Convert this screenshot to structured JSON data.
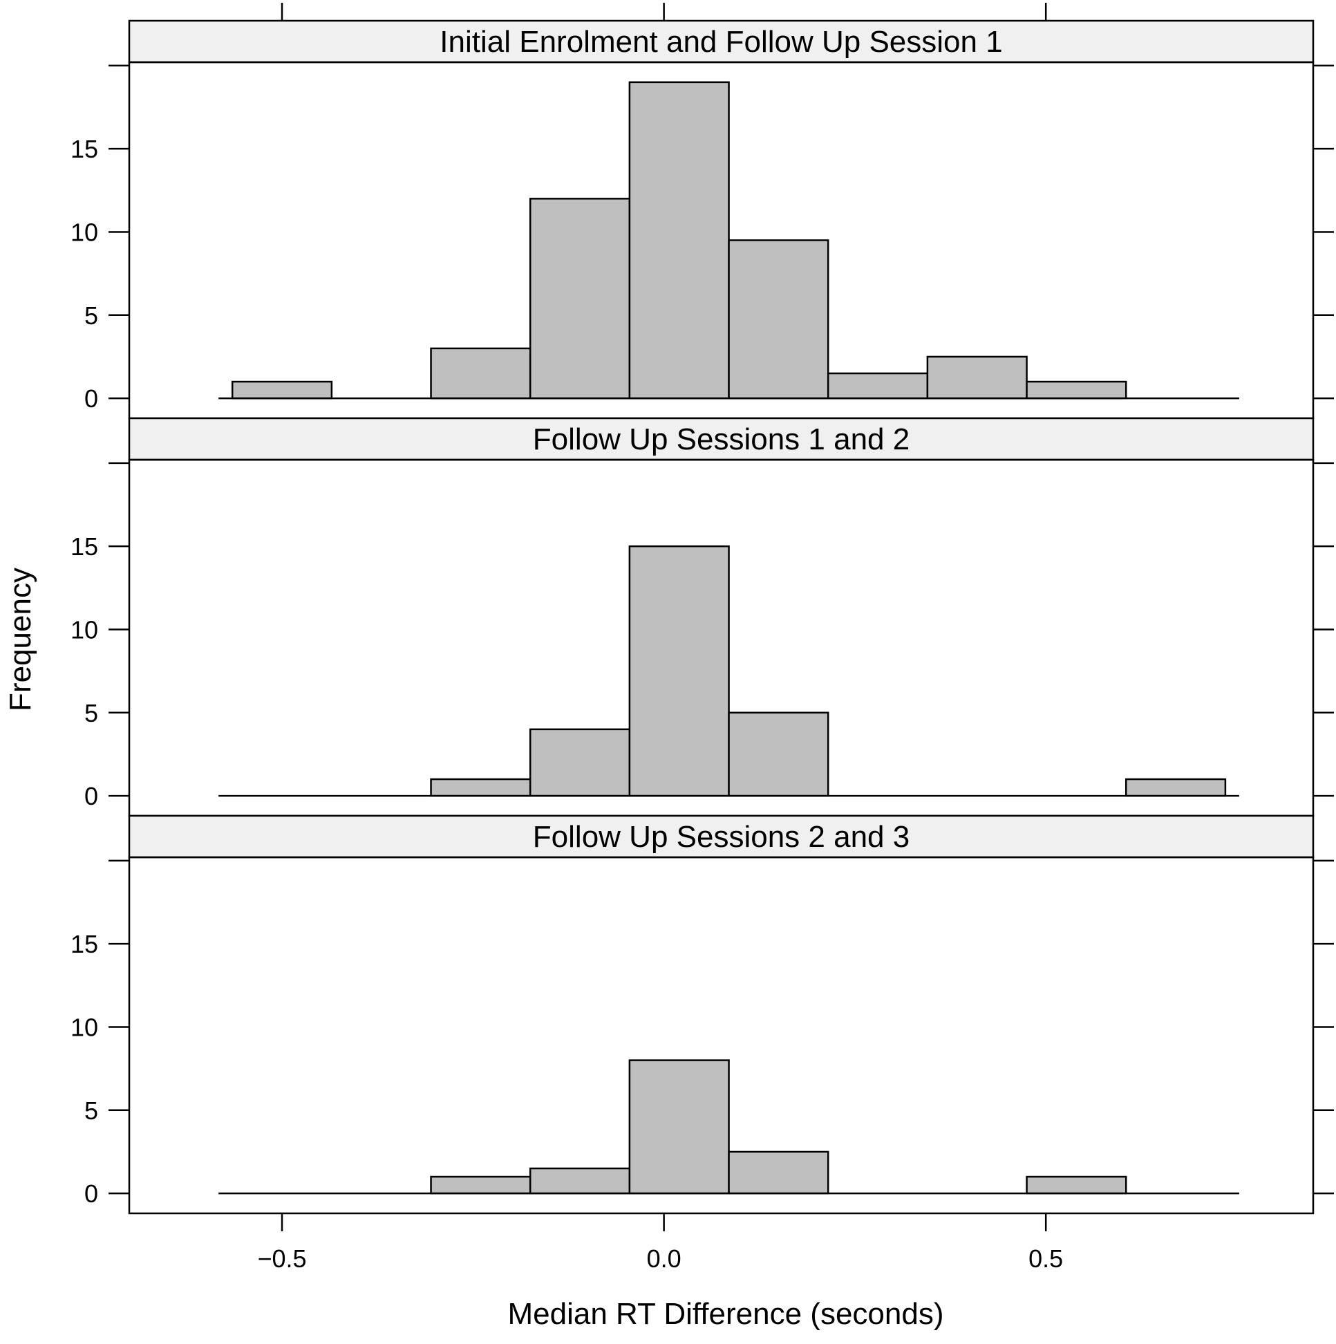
{
  "chart_data": {
    "type": "bar",
    "subtype": "histogram",
    "xlabel": "Median RT Difference (seconds)",
    "ylabel": "Frequency",
    "xlim": [
      -0.7,
      0.85
    ],
    "ylim": [
      -1.2,
      20.2
    ],
    "x_ticks": [
      -0.5,
      0.0,
      0.5
    ],
    "x_tick_labels": [
      "−0.5",
      "0.0",
      "0.5"
    ],
    "y_ticks": [
      0,
      5,
      10,
      15
    ],
    "y_tick_labels": [
      "0",
      "5",
      "10",
      "15"
    ],
    "bin_edges": [
      -0.565,
      -0.435,
      -0.305,
      -0.175,
      -0.045,
      0.085,
      0.215,
      0.345,
      0.475,
      0.605,
      0.735
    ],
    "grid": false,
    "legend": "none",
    "colors": {
      "bar_fill": "#bfbfbf",
      "strip_bg": "#f0f0f0",
      "outline": "#000000"
    },
    "panels": [
      {
        "title": "Initial Enrolment and Follow Up Session 1",
        "counts": [
          1,
          0,
          3,
          12,
          19,
          9.5,
          1.5,
          2.5,
          1,
          0
        ]
      },
      {
        "title": "Follow Up Sessions 1 and 2",
        "counts": [
          0,
          0,
          1,
          4,
          15,
          5,
          0,
          0,
          0,
          1
        ]
      },
      {
        "title": "Follow Up Sessions 2 and 3",
        "counts": [
          0,
          0,
          1,
          1.5,
          8,
          2.5,
          0,
          0,
          1,
          0
        ]
      }
    ]
  }
}
